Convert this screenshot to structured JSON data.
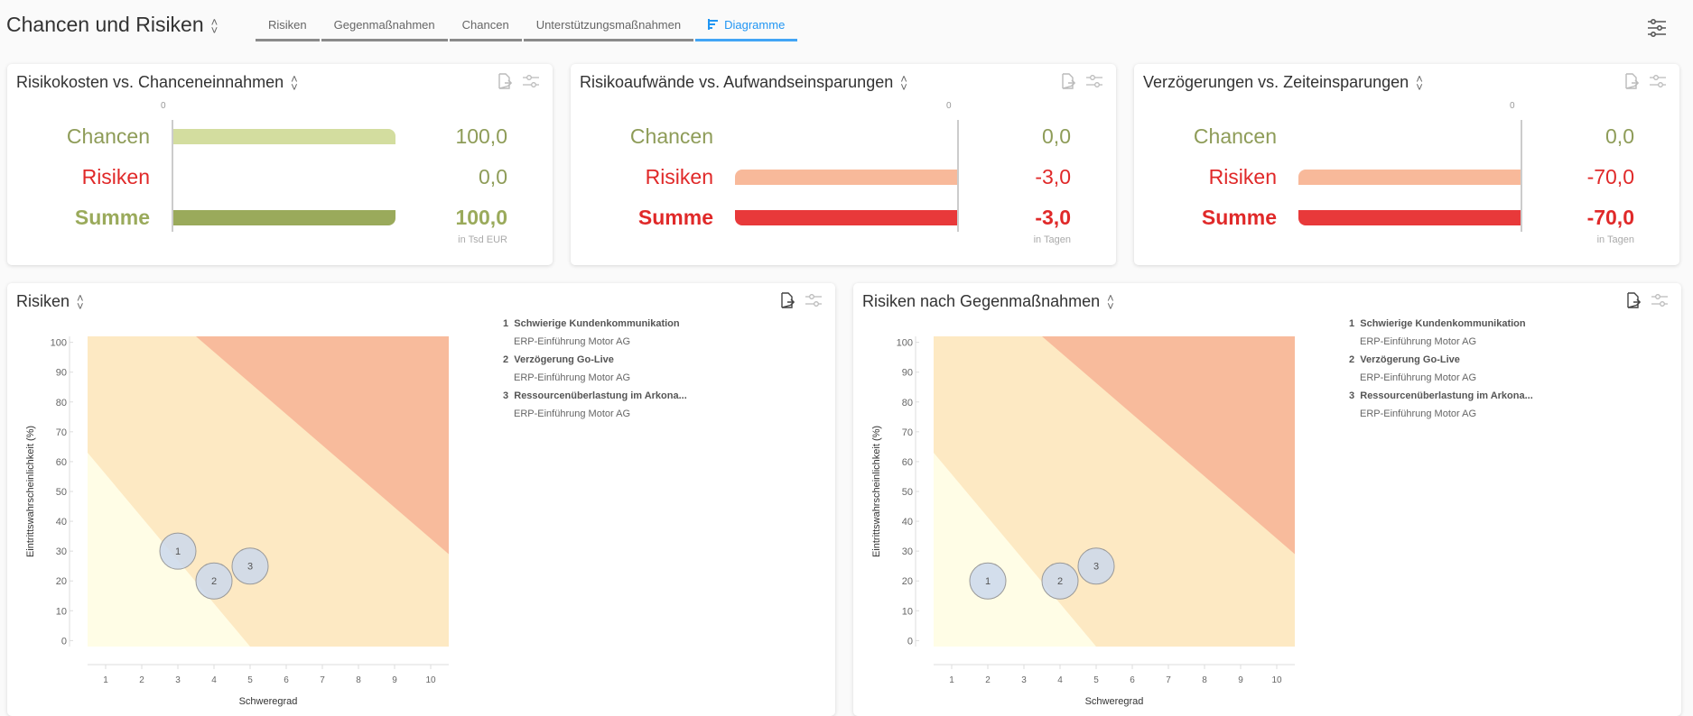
{
  "header": {
    "title": "Chancen und Risiken",
    "settings_icon": "sliders-icon",
    "tabs": [
      {
        "label": "Risiken"
      },
      {
        "label": "Gegenmaßnahmen"
      },
      {
        "label": "Chancen"
      },
      {
        "label": "Unterstützungsmaßnahmen"
      },
      {
        "label": "Diagramme",
        "active": true,
        "icon": "bar-chart-icon"
      }
    ]
  },
  "colors": {
    "chance_light": "#d3dd9f",
    "chance_dark": "#9aaa5b",
    "chance_text": "#8e9c58",
    "risk_light": "#f8b99a",
    "risk_dark": "#e8393a",
    "risk_text": "#e02929",
    "accent": "#2196f3"
  },
  "summary_cards": [
    {
      "title": "Risikokosten vs. Chanceneinnahmen",
      "unit": "in Tsd EUR",
      "zero_label": "0",
      "rows": [
        {
          "label": "Chancen",
          "value": 100,
          "display": "100,0"
        },
        {
          "label": "Risiken",
          "value": 0,
          "display": "0,0"
        },
        {
          "label": "Summe",
          "value": 100,
          "display": "100,0"
        }
      ]
    },
    {
      "title": "Risikoaufwände vs. Aufwandseinsparungen",
      "unit": "in Tagen",
      "zero_label": "0",
      "rows": [
        {
          "label": "Chancen",
          "value": 0,
          "display": "0,0"
        },
        {
          "label": "Risiken",
          "value": -3,
          "display": "-3,0"
        },
        {
          "label": "Summe",
          "value": -3,
          "display": "-3,0"
        }
      ]
    },
    {
      "title": "Verzögerungen vs. Zeiteinsparungen",
      "unit": "in Tagen",
      "zero_label": "0",
      "rows": [
        {
          "label": "Chancen",
          "value": 0,
          "display": "0,0"
        },
        {
          "label": "Risiken",
          "value": -70,
          "display": "-70,0"
        },
        {
          "label": "Summe",
          "value": -70,
          "display": "-70,0"
        }
      ]
    }
  ],
  "chart_data": [
    {
      "type": "scatter",
      "title": "Risiken",
      "xlabel": "Schweregrad",
      "ylabel": "Eintrittswahrscheinlichkeit (%)",
      "xlim": [
        0.5,
        10.5
      ],
      "ylim": [
        -2,
        102
      ],
      "xticks": [
        1,
        2,
        3,
        4,
        5,
        6,
        7,
        8,
        9,
        10
      ],
      "yticks": [
        0,
        10,
        20,
        30,
        40,
        50,
        60,
        70,
        80,
        90,
        100
      ],
      "grid": false,
      "zones": [
        {
          "name": "low",
          "color": "#fffde6",
          "line": [
            [
              0.5,
              63
            ],
            [
              5,
              -2
            ]
          ]
        },
        {
          "name": "medium",
          "color": "#fde9c3"
        },
        {
          "name": "high",
          "color": "#f8bb9c",
          "line": [
            [
              3.5,
              102
            ],
            [
              10.5,
              29
            ]
          ]
        }
      ],
      "points": [
        {
          "id": "1",
          "x": 3,
          "y": 30
        },
        {
          "id": "2",
          "x": 4,
          "y": 20
        },
        {
          "id": "3",
          "x": 5,
          "y": 25
        }
      ],
      "legend": [
        {
          "num": "1",
          "title": "Schwierige Kundenkommunikation",
          "sub": "ERP-Einführung Motor AG"
        },
        {
          "num": "2",
          "title": "Verzögerung Go-Live",
          "sub": "ERP-Einführung Motor AG"
        },
        {
          "num": "3",
          "title": "Ressourcenüberlastung im Arkona...",
          "sub": "ERP-Einführung Motor AG"
        }
      ]
    },
    {
      "type": "scatter",
      "title": "Risiken nach Gegenmaßnahmen",
      "xlabel": "Schweregrad",
      "ylabel": "Eintrittswahrscheinlichkeit (%)",
      "xlim": [
        0.5,
        10.5
      ],
      "ylim": [
        -2,
        102
      ],
      "xticks": [
        1,
        2,
        3,
        4,
        5,
        6,
        7,
        8,
        9,
        10
      ],
      "yticks": [
        0,
        10,
        20,
        30,
        40,
        50,
        60,
        70,
        80,
        90,
        100
      ],
      "grid": false,
      "zones": [
        {
          "name": "low",
          "color": "#fffde6",
          "line": [
            [
              0.5,
              63
            ],
            [
              5,
              -2
            ]
          ]
        },
        {
          "name": "medium",
          "color": "#fde9c3"
        },
        {
          "name": "high",
          "color": "#f8bb9c",
          "line": [
            [
              3.5,
              102
            ],
            [
              10.5,
              29
            ]
          ]
        }
      ],
      "points": [
        {
          "id": "1",
          "x": 2,
          "y": 20
        },
        {
          "id": "2",
          "x": 4,
          "y": 20
        },
        {
          "id": "3",
          "x": 5,
          "y": 25
        }
      ],
      "legend": [
        {
          "num": "1",
          "title": "Schwierige Kundenkommunikation",
          "sub": "ERP-Einführung Motor AG"
        },
        {
          "num": "2",
          "title": "Verzögerung Go-Live",
          "sub": "ERP-Einführung Motor AG"
        },
        {
          "num": "3",
          "title": "Ressourcenüberlastung im Arkona...",
          "sub": "ERP-Einführung Motor AG"
        }
      ]
    }
  ]
}
